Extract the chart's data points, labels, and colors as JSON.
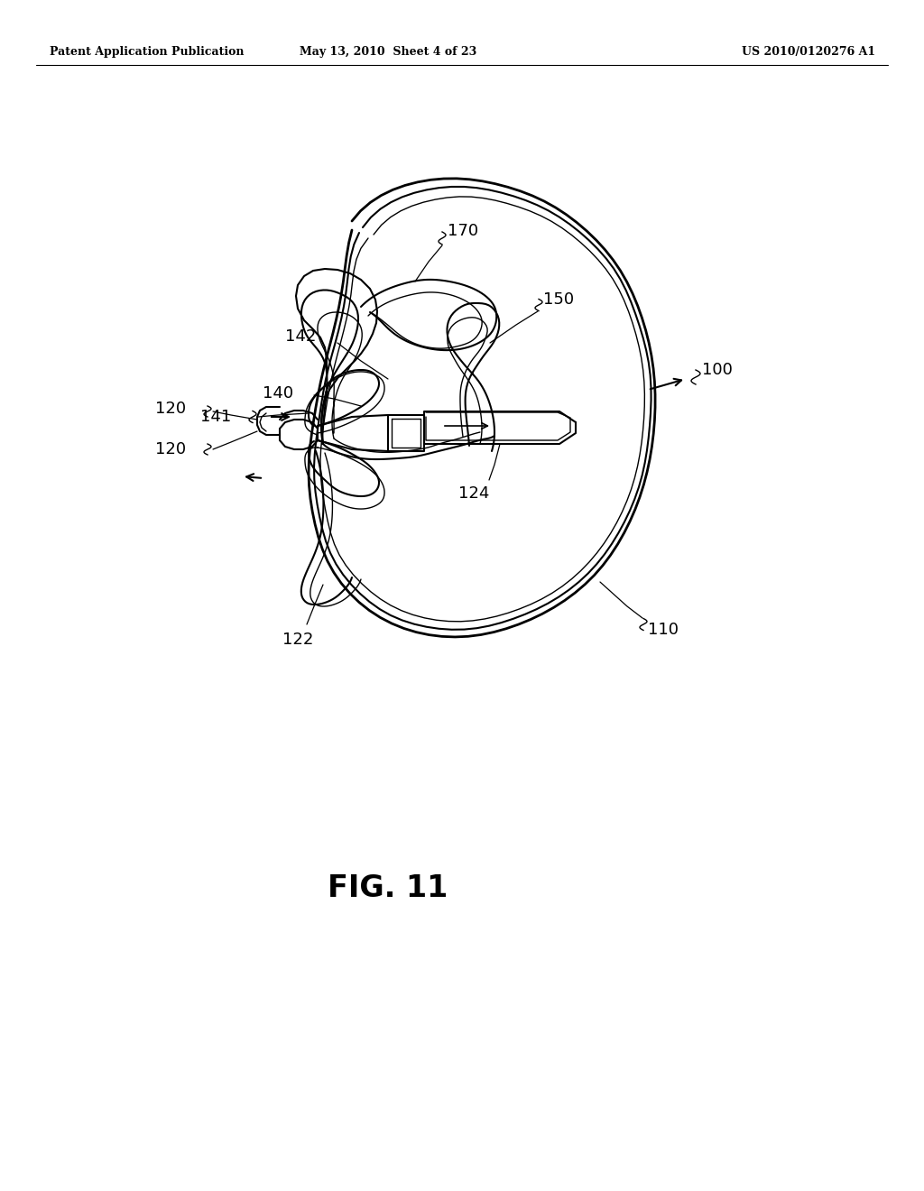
{
  "background_color": "#ffffff",
  "header_left": "Patent Application Publication",
  "header_mid": "May 13, 2010  Sheet 4 of 23",
  "header_right": "US 2010/0120276 A1",
  "fig_label": "FIG. 11",
  "line_color": "#000000",
  "lw_thick": 2.0,
  "lw_main": 1.5,
  "lw_thin": 1.0,
  "ref_fontsize": 13,
  "header_fontsize": 9,
  "fig_fontsize": 24
}
